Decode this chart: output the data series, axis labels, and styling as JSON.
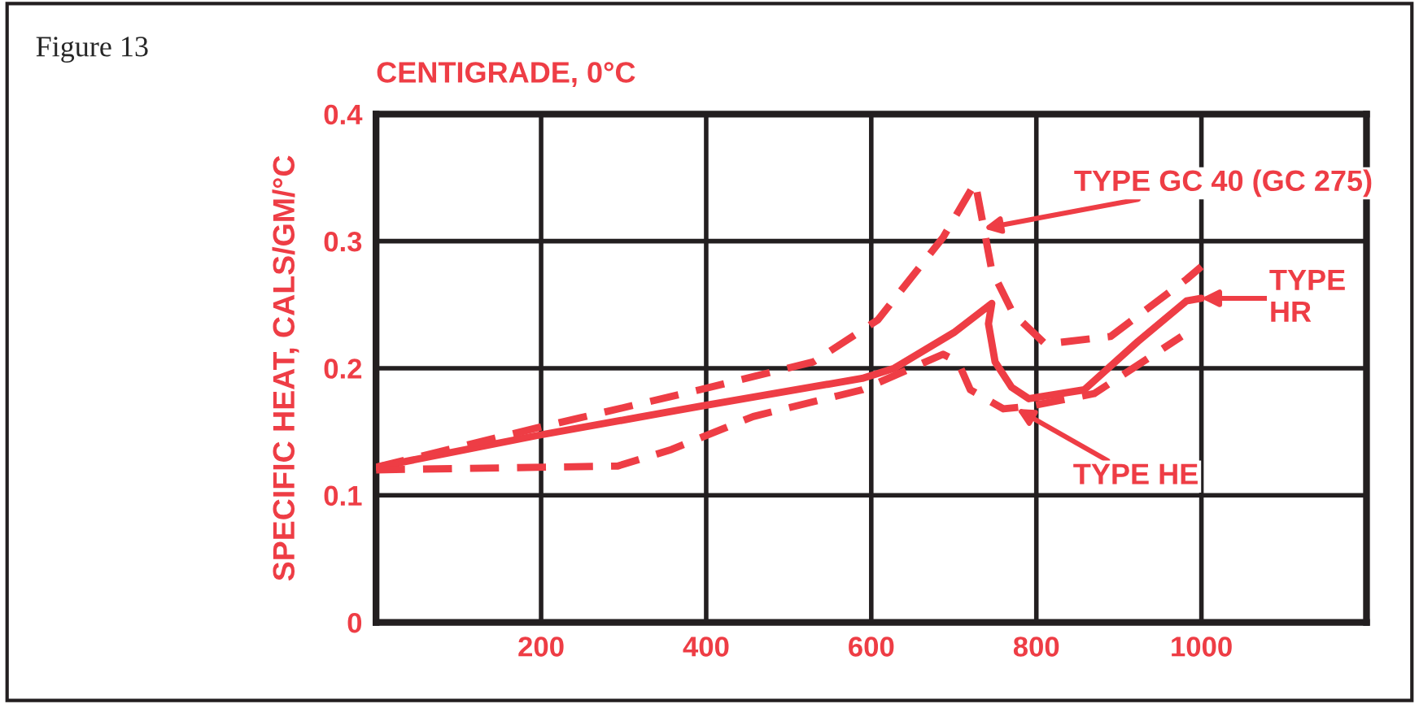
{
  "chart_data": {
    "type": "line",
    "title": "CENTIGRADE, 0°C",
    "ylabel": "SPECIFIC HEAT, CALS/GM/°C",
    "xlim": [
      0,
      1200
    ],
    "xticks": [
      {
        "value": 0,
        "label": null
      },
      200,
      400,
      600,
      800,
      1000,
      {
        "value": 1200,
        "label": null
      }
    ],
    "ylim": [
      0,
      0.4
    ],
    "yticks": [
      0,
      0.1,
      0.2,
      0.3,
      0.4
    ],
    "grid": true,
    "legend": false,
    "marker": "none",
    "series": [
      {
        "color": "#ee3d45",
        "line_style": "solid",
        "x": [
          0,
          195,
          392,
          589,
          628,
          700,
          746,
          742,
          750,
          770,
          791,
          858,
          923,
          982,
          1000
        ],
        "values": [
          0.122,
          0.147,
          0.17,
          0.192,
          0.2,
          0.228,
          0.251,
          0.235,
          0.205,
          0.185,
          0.176,
          0.183,
          0.221,
          0.253,
          0.255
        ]
      },
      {
        "color": "#ee3d45",
        "line_style": "dashed",
        "x": [
          0,
          195,
          392,
          530,
          608,
          687,
          726,
          746,
          772,
          811,
          890,
          982,
          1000
        ],
        "values": [
          0.122,
          0.153,
          0.183,
          0.205,
          0.238,
          0.303,
          0.346,
          0.277,
          0.243,
          0.219,
          0.225,
          0.27,
          0.28
        ]
      },
      {
        "color": "#ee3d45",
        "line_style": "dashed",
        "x": [
          0,
          293,
          358,
          457,
          589,
          687,
          705,
          720,
          760,
          791,
          870,
          976
        ],
        "values": [
          0.12,
          0.123,
          0.136,
          0.162,
          0.183,
          0.211,
          0.205,
          0.183,
          0.168,
          0.17,
          0.18,
          0.225
        ]
      }
    ],
    "annotations": [
      "Figure 13",
      {
        "text": "TYPE GC 40 (GC 275)",
        "x": 736,
        "y": 0.31
      },
      {
        "text": "TYPE\nHR",
        "x": 1000,
        "y": 0.255
      },
      {
        "text": "TYPE HE",
        "x": 776,
        "y": 0.168
      }
    ]
  }
}
